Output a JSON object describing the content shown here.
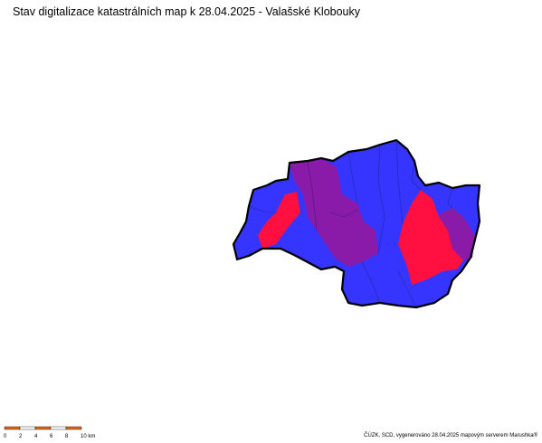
{
  "title": "Stav digitalizace katastrálních map k 28.04.2025 - Valašské Klobouky",
  "scale": {
    "labels": [
      "0",
      "2",
      "4",
      "6",
      "8",
      "10 km"
    ]
  },
  "credit": "ČÚZK, SCD, vygenerováno 28.04.2025 mapovým serverem Marushka®"
}
